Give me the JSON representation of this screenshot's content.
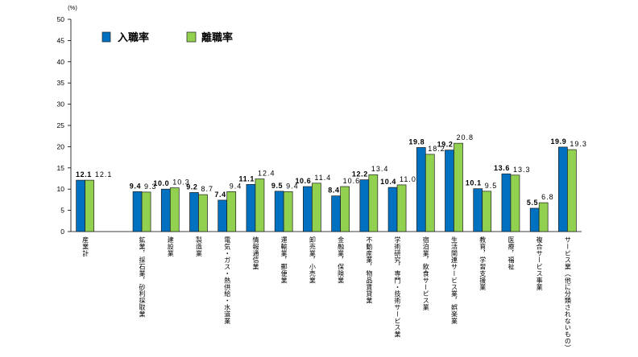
{
  "chart_data": {
    "type": "bar",
    "ylabel": "(%)",
    "ylim": [
      0,
      50
    ],
    "yticks": [
      0,
      5,
      10,
      15,
      20,
      25,
      30,
      35,
      40,
      45,
      50
    ],
    "grid": false,
    "legend_position": "top-left",
    "categories": [
      "産業計",
      "鉱業，採石業，砂利採取業",
      "建設業",
      "製造業",
      "電気・ガス・熱供給・水道業",
      "情報通信業",
      "運輸業，郵便業",
      "卸売業，小売業",
      "金融業，保険業",
      "不動産業，物品賃貸業",
      "学術研究，専門・技術サービス業",
      "宿泊業，飲食サービス業",
      "生活関連サービス業，娯楽業",
      "教育，学習支援業",
      "医療，福祉",
      "複合サービス事業",
      "サービス業（他に分類されないもの）"
    ],
    "series": [
      {
        "name": "入職率",
        "color": "#0070C0",
        "values": [
          12.1,
          9.4,
          10.0,
          9.2,
          7.4,
          11.1,
          9.5,
          10.6,
          8.4,
          12.2,
          10.4,
          19.8,
          19.2,
          10.1,
          13.6,
          5.5,
          19.9
        ]
      },
      {
        "name": "離職率",
        "color": "#92D050",
        "values": [
          12.1,
          9.3,
          10.3,
          8.7,
          9.4,
          12.4,
          9.4,
          11.4,
          10.6,
          13.4,
          11.0,
          18.2,
          20.8,
          9.5,
          13.3,
          6.8,
          19.3
        ]
      }
    ]
  }
}
